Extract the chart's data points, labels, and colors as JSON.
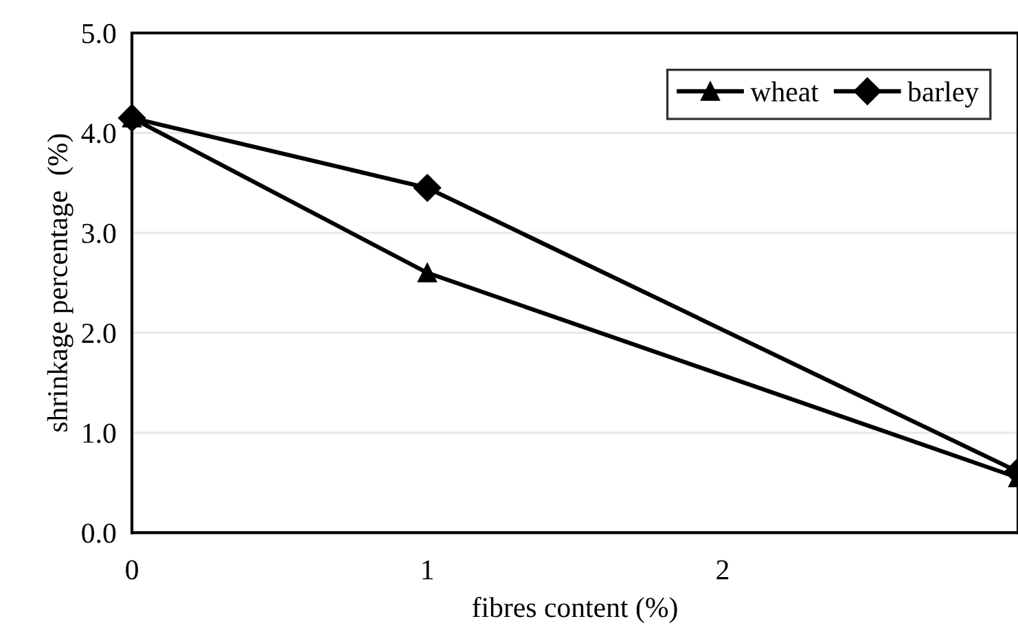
{
  "chart_data": {
    "type": "line",
    "xlabel": "fibres content (%)",
    "ylabel": "shrinkage percentage  (%)",
    "categories": [
      "0",
      "1",
      "2",
      null
    ],
    "series": [
      {
        "name": "wheat",
        "color": "#000000",
        "marker": "triangle",
        "values": [
          4.15,
          2.6,
          null,
          0.55
        ]
      },
      {
        "name": "barley",
        "color": "#000000",
        "marker": "diamond",
        "values": [
          4.15,
          3.45,
          null,
          0.61
        ]
      }
    ],
    "ylim": [
      0,
      5
    ],
    "yticks": [
      {
        "value": 0,
        "label": "0.0"
      },
      {
        "value": 1,
        "label": "1.0"
      },
      {
        "value": 2,
        "label": "2.0"
      },
      {
        "value": 3,
        "label": "3.0"
      },
      {
        "value": 4,
        "label": "4.0"
      },
      {
        "value": 5,
        "label": "5.0"
      }
    ],
    "grid": "y",
    "legend": "top right",
    "line_style": "solid"
  }
}
